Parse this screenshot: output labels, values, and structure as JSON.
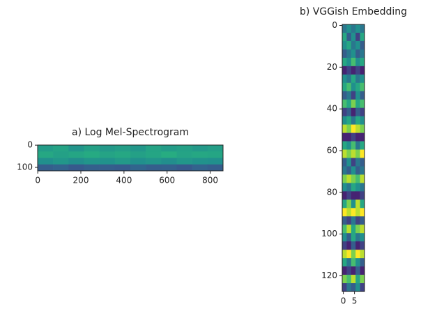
{
  "chart_data": [
    {
      "type": "heatmap",
      "title": "a) Log Mel-Spectrogram",
      "xlim": [
        -0.5,
        859.5
      ],
      "ylim": [
        115.5,
        -0.5
      ],
      "xticks": [
        0,
        200,
        400,
        600,
        800
      ],
      "yticks": [
        0,
        100
      ],
      "colormap": "viridis",
      "vmin": 0,
      "vmax": 1,
      "values": [
        [
          0.55,
          0.58,
          0.52,
          0.57,
          0.54,
          0.56,
          0.53,
          0.58,
          0.55,
          0.57,
          0.54,
          0.56
        ],
        [
          0.6,
          0.57,
          0.59,
          0.61,
          0.58,
          0.6,
          0.57,
          0.59,
          0.62,
          0.58,
          0.6,
          0.59
        ],
        [
          0.5,
          0.53,
          0.49,
          0.52,
          0.51,
          0.54,
          0.5,
          0.52,
          0.49,
          0.53,
          0.51,
          0.5
        ],
        [
          0.3,
          0.32,
          0.28,
          0.31,
          0.3,
          0.29,
          0.33,
          0.3,
          0.31,
          0.28,
          0.32,
          0.3
        ]
      ]
    },
    {
      "type": "heatmap",
      "title": "b) VGGish Embedding",
      "xlim": [
        -0.5,
        9.5
      ],
      "ylim": [
        127.5,
        -0.5
      ],
      "xticks": [
        0,
        5
      ],
      "yticks": [
        0,
        20,
        40,
        60,
        80,
        100,
        120
      ],
      "colormap": "viridis",
      "vmin": 0,
      "vmax": 1,
      "values": [
        [
          0.4,
          0.5,
          0.4,
          0.5,
          0.4
        ],
        [
          0.6,
          0.3,
          0.5,
          0.2,
          0.6
        ],
        [
          0.5,
          0.6,
          0.4,
          0.5,
          0.3
        ],
        [
          0.3,
          0.4,
          0.5,
          0.3,
          0.4
        ],
        [
          0.6,
          0.5,
          0.7,
          0.5,
          0.6
        ],
        [
          0.1,
          0.2,
          0.1,
          0.2,
          0.1
        ],
        [
          0.5,
          0.4,
          0.6,
          0.4,
          0.5
        ],
        [
          0.6,
          0.7,
          0.5,
          0.6,
          0.7
        ],
        [
          0.3,
          0.4,
          0.2,
          0.5,
          0.3
        ],
        [
          0.7,
          0.6,
          0.8,
          0.6,
          0.7
        ],
        [
          0.2,
          0.3,
          0.1,
          0.3,
          0.2
        ],
        [
          0.5,
          0.6,
          0.4,
          0.6,
          0.5
        ],
        [
          0.9,
          0.8,
          1.0,
          0.9,
          0.8
        ],
        [
          0.1,
          0.1,
          0.2,
          0.1,
          0.1
        ],
        [
          0.6,
          0.5,
          0.7,
          0.4,
          0.6
        ],
        [
          0.9,
          0.8,
          0.9,
          0.8,
          1.0
        ],
        [
          0.3,
          0.5,
          0.2,
          0.4,
          0.3
        ],
        [
          0.4,
          0.3,
          0.5,
          0.3,
          0.4
        ],
        [
          0.8,
          0.9,
          0.8,
          0.7,
          0.9
        ],
        [
          0.5,
          0.4,
          0.6,
          0.5,
          0.4
        ],
        [
          0.1,
          0.2,
          0.1,
          0.1,
          0.2
        ],
        [
          0.6,
          0.8,
          0.5,
          0.9,
          0.6
        ],
        [
          1.0,
          0.9,
          1.0,
          0.9,
          1.0
        ],
        [
          0.3,
          0.2,
          0.4,
          0.2,
          0.3
        ],
        [
          0.7,
          0.9,
          0.6,
          0.8,
          0.9
        ],
        [
          0.5,
          0.3,
          0.6,
          0.4,
          0.5
        ],
        [
          0.2,
          0.1,
          0.3,
          0.1,
          0.2
        ],
        [
          0.9,
          1.0,
          0.8,
          1.0,
          0.9
        ],
        [
          0.6,
          0.4,
          0.7,
          0.5,
          0.3
        ],
        [
          0.1,
          0.2,
          0.1,
          0.3,
          0.1
        ],
        [
          0.8,
          0.7,
          0.9,
          0.6,
          0.8
        ],
        [
          0.2,
          0.4,
          0.3,
          0.5,
          0.2
        ]
      ]
    }
  ]
}
